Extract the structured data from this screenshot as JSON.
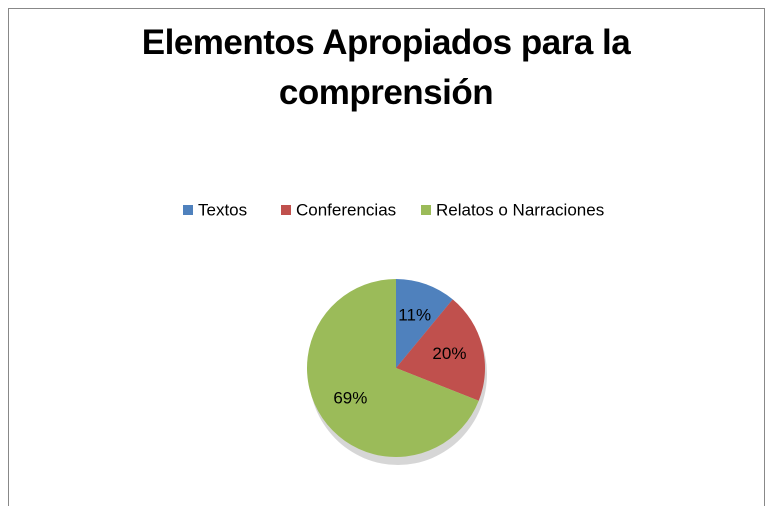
{
  "chart_data": {
    "type": "pie",
    "title": "Elementos Apropiados para la comprensión",
    "categories": [
      "Textos",
      "Conferencias",
      "Relatos o Narraciones"
    ],
    "values": [
      11,
      20,
      69
    ],
    "value_labels": [
      "11%",
      "20%",
      "69%"
    ],
    "colors": [
      "#4f81bd",
      "#c0504d",
      "#9bbb59"
    ],
    "legend": "top"
  }
}
